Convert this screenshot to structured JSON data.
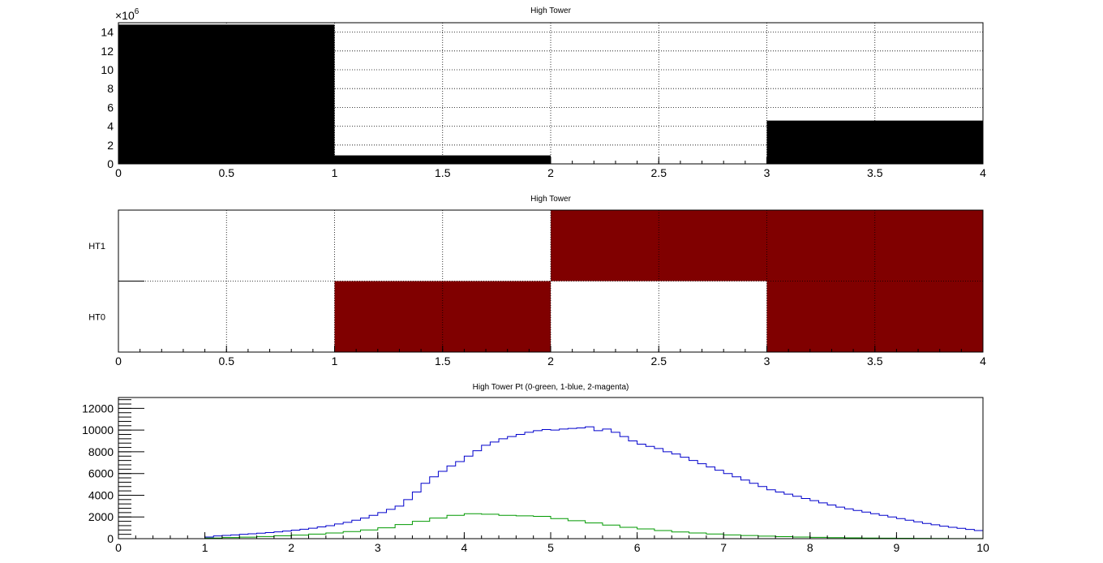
{
  "chart_data": [
    {
      "type": "bar",
      "title": "High Tower",
      "xlim": [
        0,
        4
      ],
      "ylim": [
        0,
        15
      ],
      "y_multiplier_label": "×10",
      "y_multiplier_exponent": "6",
      "grid": true,
      "x_ticks": [
        "0",
        "0.5",
        "1",
        "1.5",
        "2",
        "2.5",
        "3",
        "3.5",
        "4"
      ],
      "y_ticks": [
        "0",
        "2",
        "4",
        "6",
        "8",
        "10",
        "12",
        "14"
      ],
      "bins": [
        {
          "x0": 0,
          "x1": 1,
          "value": 14.8
        },
        {
          "x0": 1,
          "x1": 2,
          "value": 0.9
        },
        {
          "x0": 2,
          "x1": 3,
          "value": 0
        },
        {
          "x0": 3,
          "x1": 4,
          "value": 4.6
        }
      ],
      "color": "#000000"
    },
    {
      "type": "heatmap",
      "title": "High Tower",
      "xlim": [
        0,
        4
      ],
      "grid": true,
      "x_ticks": [
        "0",
        "0.5",
        "1",
        "1.5",
        "2",
        "2.5",
        "3",
        "3.5",
        "4"
      ],
      "y_categories": [
        "HT0",
        "HT1"
      ],
      "cells": [
        {
          "x0": 1,
          "x1": 2,
          "row": "HT0"
        },
        {
          "x0": 3,
          "x1": 4,
          "row": "HT0"
        },
        {
          "x0": 2,
          "x1": 3,
          "row": "HT1"
        },
        {
          "x0": 3,
          "x1": 4,
          "row": "HT1"
        }
      ],
      "color": "#800000"
    },
    {
      "type": "line",
      "title": "High Tower Pt (0-green, 1-blue, 2-magenta)",
      "xlim": [
        0,
        10
      ],
      "ylim": [
        0,
        13000
      ],
      "x_ticks": [
        "0",
        "1",
        "2",
        "3",
        "4",
        "5",
        "6",
        "7",
        "8",
        "9",
        "10"
      ],
      "y_ticks": [
        "0",
        "2000",
        "4000",
        "6000",
        "8000",
        "10000",
        "12000"
      ],
      "series": [
        {
          "color": "#0000cc",
          "x": [
            0,
            0.5,
            1,
            1.1,
            1.2,
            1.3,
            1.4,
            1.5,
            1.6,
            1.7,
            1.8,
            1.9,
            2,
            2.1,
            2.2,
            2.3,
            2.4,
            2.5,
            2.6,
            2.7,
            2.8,
            2.9,
            3,
            3.1,
            3.2,
            3.3,
            3.4,
            3.5,
            3.6,
            3.7,
            3.8,
            3.9,
            4,
            4.1,
            4.2,
            4.3,
            4.4,
            4.5,
            4.6,
            4.7,
            4.8,
            4.9,
            5,
            5.1,
            5.2,
            5.3,
            5.4,
            5.5,
            5.6,
            5.7,
            5.8,
            5.9,
            6,
            6.1,
            6.2,
            6.3,
            6.4,
            6.5,
            6.6,
            6.7,
            6.8,
            6.9,
            7,
            7.1,
            7.2,
            7.3,
            7.4,
            7.5,
            7.6,
            7.7,
            7.8,
            7.9,
            8,
            8.1,
            8.2,
            8.3,
            8.4,
            8.5,
            8.6,
            8.7,
            8.8,
            8.9,
            9,
            9.1,
            9.2,
            9.3,
            9.4,
            9.5,
            9.6,
            9.7,
            9.8,
            9.9
          ],
          "y": [
            0,
            0,
            150,
            250,
            300,
            350,
            400,
            450,
            500,
            560,
            630,
            700,
            780,
            870,
            960,
            1080,
            1200,
            1350,
            1500,
            1700,
            1900,
            2150,
            2400,
            2700,
            3000,
            3600,
            4300,
            5100,
            5700,
            6200,
            6700,
            7100,
            7600,
            8100,
            8600,
            8900,
            9200,
            9400,
            9600,
            9800,
            9950,
            10050,
            10000,
            10100,
            10150,
            10200,
            10300,
            9950,
            10100,
            9800,
            9400,
            9000,
            8700,
            8500,
            8300,
            8000,
            7800,
            7500,
            7200,
            6900,
            6600,
            6300,
            6000,
            5700,
            5400,
            5100,
            4800,
            4500,
            4300,
            4100,
            3900,
            3700,
            3500,
            3300,
            3100,
            2900,
            2750,
            2600,
            2450,
            2300,
            2150,
            2000,
            1850,
            1700,
            1550,
            1400,
            1280,
            1150,
            1050,
            950,
            850,
            750
          ]
        },
        {
          "color": "#009900",
          "x": [
            0,
            0.5,
            1,
            1.2,
            1.4,
            1.6,
            1.8,
            2,
            2.2,
            2.4,
            2.6,
            2.8,
            3,
            3.2,
            3.4,
            3.6,
            3.8,
            4,
            4.2,
            4.4,
            4.6,
            4.8,
            5,
            5.2,
            5.4,
            5.6,
            5.8,
            6,
            6.2,
            6.4,
            6.6,
            6.8,
            7,
            7.2,
            7.4,
            7.6,
            7.8,
            8,
            8.2,
            8.4,
            8.6,
            8.8,
            9,
            9.2,
            9.4,
            9.6,
            9.8
          ],
          "y": [
            0,
            0,
            60,
            100,
            140,
            200,
            260,
            330,
            420,
            520,
            650,
            800,
            1000,
            1300,
            1600,
            1900,
            2150,
            2300,
            2250,
            2150,
            2100,
            2050,
            1850,
            1650,
            1450,
            1250,
            1050,
            900,
            750,
            620,
            520,
            430,
            350,
            290,
            230,
            190,
            150,
            120,
            95,
            75,
            60,
            45,
            35,
            25,
            18,
            12,
            8
          ]
        }
      ]
    }
  ]
}
